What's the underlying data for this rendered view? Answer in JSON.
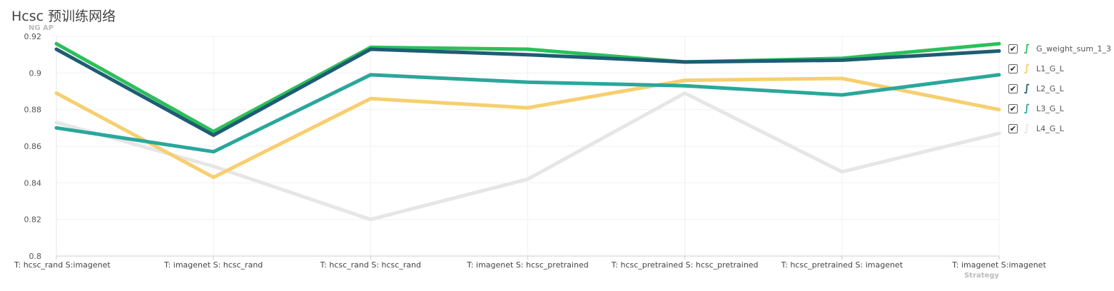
{
  "title": "Hcsc 预训练网络",
  "chart_data": {
    "type": "line",
    "ylabel": "NG AP",
    "xlabel": "Strategy",
    "ylim": [
      0.8,
      0.92
    ],
    "yticks": [
      "0.92",
      "0.9",
      "0.88",
      "0.86",
      "0.84",
      "0.82",
      "0.8"
    ],
    "categories": [
      "T: hcsc_rand S:imagenet",
      "T: imagenet S: hcsc_rand",
      "T: hcsc_rand S: hcsc_rand",
      "T: imagenet S: hcsc_pretrained",
      "T: hcsc_pretrained S: hcsc_pretrained",
      "T: hcsc_pretrained S: imagenet",
      "T: imagenet S:imagenet"
    ],
    "series": [
      {
        "name": "L4_G_L",
        "color": "#e6e6e6",
        "values": [
          0.873,
          0.849,
          0.82,
          0.842,
          0.889,
          0.846,
          0.867
        ]
      },
      {
        "name": "L1_G_L",
        "color": "#f7cf6f",
        "values": [
          0.889,
          0.843,
          0.886,
          0.881,
          0.896,
          0.897,
          0.88
        ]
      },
      {
        "name": "L3_G_L",
        "color": "#2aa79b",
        "values": [
          0.87,
          0.857,
          0.899,
          0.895,
          0.893,
          0.888,
          0.899
        ]
      },
      {
        "name": "G_weight_sum_1_3",
        "color": "#2dbf5a",
        "values": [
          0.916,
          0.868,
          0.914,
          0.913,
          0.906,
          0.908,
          0.916
        ]
      },
      {
        "name": "L2_G_L",
        "color": "#1f5c74",
        "values": [
          0.913,
          0.866,
          0.913,
          0.91,
          0.906,
          0.907,
          0.912
        ]
      }
    ],
    "legend": {
      "position": "right",
      "items": [
        {
          "name": "G_weight_sum_1_3",
          "color": "#2dbf5a",
          "icon": "wave-icon",
          "checked": true
        },
        {
          "name": "L1_G_L",
          "color": "#f7cf6f",
          "icon": "wave-icon",
          "checked": true
        },
        {
          "name": "L2_G_L",
          "color": "#1f5c74",
          "icon": "wave-icon",
          "checked": true
        },
        {
          "name": "L3_G_L",
          "color": "#2aa79b",
          "icon": "wave-icon",
          "checked": true
        },
        {
          "name": "L4_G_L",
          "color": "#e6e6e6",
          "icon": "wave-icon",
          "checked": true
        }
      ]
    },
    "grid": true
  }
}
